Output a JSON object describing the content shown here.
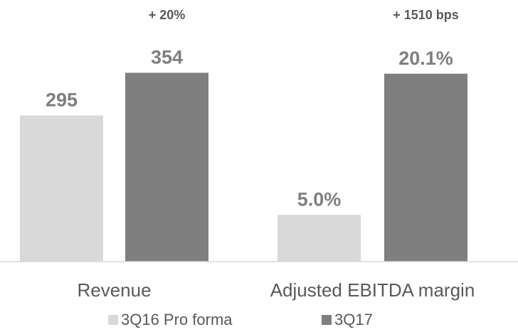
{
  "chart_data": {
    "type": "bar",
    "categories": [
      "Revenue",
      "Adjusted EBITDA margin"
    ],
    "series": [
      {
        "name": "3Q16 Pro forma",
        "color": "#d9d9d9",
        "values": [
          295,
          5.0
        ],
        "value_labels": [
          "295",
          "5.0%"
        ]
      },
      {
        "name": "3Q17",
        "color": "#7f7f7f",
        "values": [
          354,
          20.1
        ],
        "value_labels": [
          "354",
          "20.1%"
        ]
      }
    ],
    "category_ylims": [
      [
        93,
        376
      ],
      [
        0,
        21.9
      ]
    ],
    "annotations": [
      "+ 20%",
      "+ 1510 bps"
    ],
    "legend": "bottom"
  }
}
